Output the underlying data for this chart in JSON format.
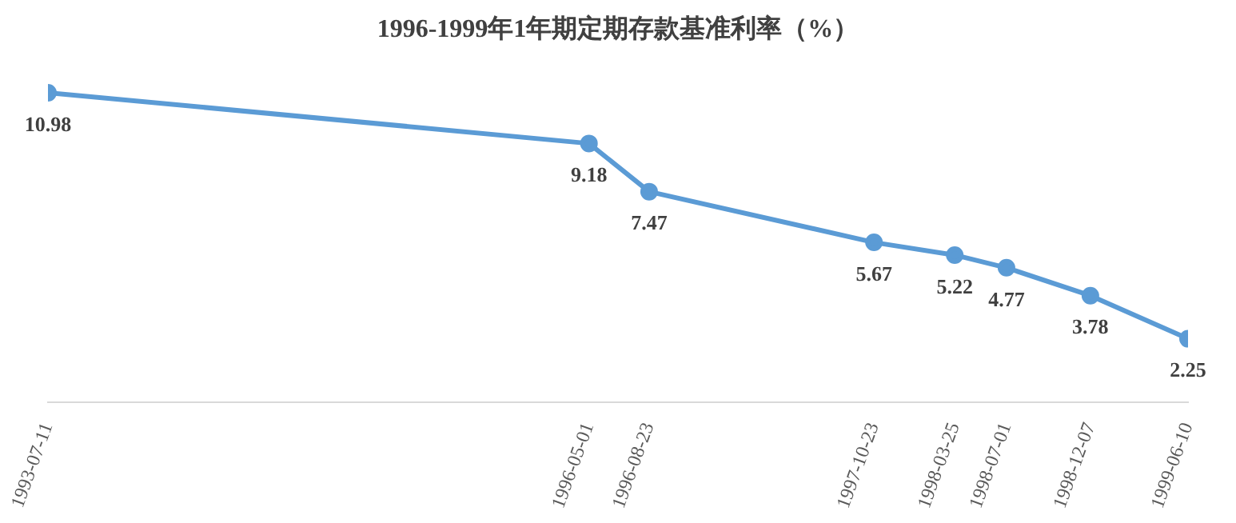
{
  "chart_data": {
    "type": "line",
    "title": "1996-1999年1年期定期存款基准利率（%）",
    "x": [
      "1993-07-11",
      "1996-05-01",
      "1996-08-23",
      "1997-10-23",
      "1998-03-25",
      "1998-07-01",
      "1998-12-07",
      "1999-06-10"
    ],
    "series": [
      {
        "color": "#5b9bd5",
        "values": [
          10.98,
          9.18,
          7.47,
          5.67,
          5.22,
          4.77,
          3.78,
          2.25
        ]
      }
    ],
    "xlim": [
      "1993-07-11",
      "1999-06-10"
    ],
    "xticks": [
      "1993-07-11",
      "1996-05-01",
      "1996-08-23",
      "1997-10-23",
      "1998-03-25",
      "1998-07-01",
      "1998-12-07",
      "1999-06-10"
    ],
    "tick_labels": "x",
    "data_labels": true,
    "grid": false,
    "legend": false,
    "marker": "circle",
    "line_style": "solid"
  }
}
